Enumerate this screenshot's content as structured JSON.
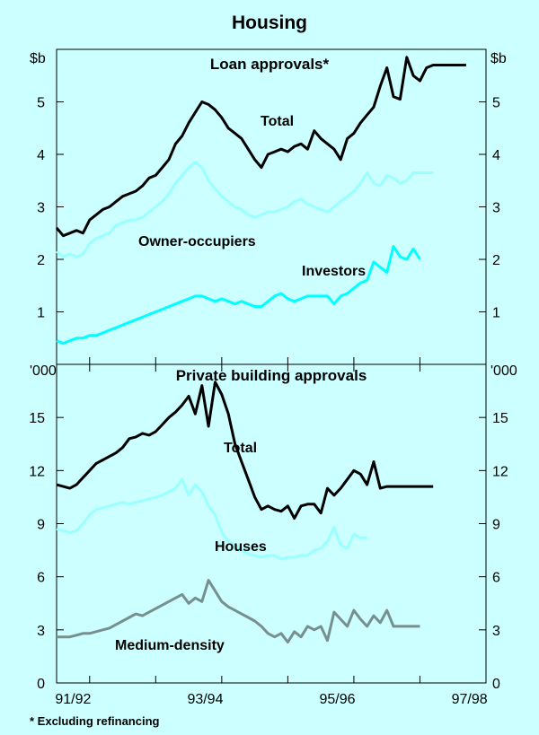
{
  "title": "Housing",
  "footnote": "*   Excluding refinancing",
  "chart_data": [
    {
      "type": "line",
      "title": "Loan approvals*",
      "unit_left": "$b",
      "unit_right": "$b",
      "ylim": [
        0,
        6
      ],
      "yticks": [
        1,
        2,
        3,
        4,
        5
      ],
      "xlim": [
        1991.5,
        1998.0
      ],
      "series": [
        {
          "name": "Total",
          "color": "#000000",
          "x": [
            1991.5,
            1991.6,
            1991.7,
            1991.8,
            1991.9,
            1992.0,
            1992.1,
            1992.2,
            1992.3,
            1992.4,
            1992.5,
            1992.6,
            1992.7,
            1992.8,
            1992.9,
            1993.0,
            1993.1,
            1993.2,
            1993.3,
            1993.4,
            1993.5,
            1993.6,
            1993.7,
            1993.8,
            1993.9,
            1994.0,
            1994.1,
            1994.2,
            1994.3,
            1994.4,
            1994.5,
            1994.6,
            1994.7,
            1994.8,
            1994.9,
            1995.0,
            1995.1,
            1995.2,
            1995.3,
            1995.4,
            1995.5,
            1995.6,
            1995.7,
            1995.8,
            1995.9,
            1996.0,
            1996.1,
            1996.2,
            1996.3,
            1996.4,
            1996.5,
            1996.6,
            1996.7,
            1996.8,
            1996.9,
            1997.0,
            1997.1,
            1997.2,
            1997.3,
            1997.4,
            1997.5,
            1997.6,
            1997.7
          ],
          "values": [
            2.6,
            2.45,
            2.5,
            2.55,
            2.5,
            2.75,
            2.85,
            2.95,
            3.0,
            3.1,
            3.2,
            3.25,
            3.3,
            3.4,
            3.55,
            3.6,
            3.75,
            3.9,
            4.2,
            4.35,
            4.6,
            4.8,
            5.0,
            4.95,
            4.85,
            4.7,
            4.5,
            4.4,
            4.3,
            4.1,
            3.9,
            3.75,
            4.0,
            4.05,
            4.1,
            4.05,
            4.15,
            4.2,
            4.1,
            4.45,
            4.3,
            4.2,
            4.1,
            3.9,
            4.3,
            4.4,
            4.6,
            4.75,
            4.9,
            5.3,
            5.65,
            5.1,
            5.05,
            5.85,
            5.5,
            5.4,
            5.65,
            5.7,
            5.7,
            5.7,
            5.7,
            5.7,
            5.7
          ]
        },
        {
          "name": "Owner-occupiers",
          "color": "#99ffff",
          "x": [
            1991.5,
            1991.6,
            1991.7,
            1991.8,
            1991.9,
            1992.0,
            1992.1,
            1992.2,
            1992.3,
            1992.4,
            1992.5,
            1992.6,
            1992.7,
            1992.8,
            1992.9,
            1993.0,
            1993.1,
            1993.2,
            1993.3,
            1993.4,
            1993.5,
            1993.6,
            1993.7,
            1993.8,
            1993.9,
            1994.0,
            1994.1,
            1994.2,
            1994.3,
            1994.4,
            1994.5,
            1994.6,
            1994.7,
            1994.8,
            1994.9,
            1995.0,
            1995.1,
            1995.2,
            1995.3,
            1995.4,
            1995.5,
            1995.6,
            1995.7,
            1995.8,
            1995.9,
            1996.0,
            1996.1,
            1996.2,
            1996.3,
            1996.4,
            1996.5,
            1996.6,
            1996.7,
            1996.8,
            1996.9,
            1997.0,
            1997.1,
            1997.2
          ],
          "values": [
            2.15,
            2.05,
            2.1,
            2.05,
            2.1,
            2.3,
            2.4,
            2.45,
            2.5,
            2.65,
            2.7,
            2.75,
            2.75,
            2.8,
            2.9,
            3.0,
            3.1,
            3.25,
            3.45,
            3.6,
            3.75,
            3.85,
            3.75,
            3.5,
            3.35,
            3.2,
            3.1,
            3.0,
            2.95,
            2.85,
            2.8,
            2.85,
            2.9,
            2.9,
            2.95,
            3.0,
            3.1,
            3.15,
            3.05,
            3.0,
            2.95,
            2.9,
            3.0,
            3.1,
            3.2,
            3.3,
            3.45,
            3.65,
            3.45,
            3.4,
            3.6,
            3.55,
            3.45,
            3.5,
            3.65,
            3.65,
            3.65,
            3.65
          ]
        },
        {
          "name": "Investors",
          "color": "#00ffff",
          "x": [
            1991.5,
            1991.6,
            1991.7,
            1991.8,
            1991.9,
            1992.0,
            1992.1,
            1992.2,
            1992.3,
            1992.4,
            1992.5,
            1992.6,
            1992.7,
            1992.8,
            1992.9,
            1993.0,
            1993.1,
            1993.2,
            1993.3,
            1993.4,
            1993.5,
            1993.6,
            1993.7,
            1993.8,
            1993.9,
            1994.0,
            1994.1,
            1994.2,
            1994.3,
            1994.4,
            1994.5,
            1994.6,
            1994.7,
            1994.8,
            1994.9,
            1995.0,
            1995.1,
            1995.2,
            1995.3,
            1995.4,
            1995.5,
            1995.6,
            1995.7,
            1995.8,
            1995.9,
            1996.0,
            1996.1,
            1996.2,
            1996.3,
            1996.4,
            1996.5,
            1996.6,
            1996.7,
            1996.8,
            1996.9,
            1997.0
          ],
          "values": [
            0.45,
            0.4,
            0.45,
            0.5,
            0.5,
            0.55,
            0.55,
            0.6,
            0.65,
            0.7,
            0.75,
            0.8,
            0.85,
            0.9,
            0.95,
            1.0,
            1.05,
            1.1,
            1.15,
            1.2,
            1.25,
            1.3,
            1.3,
            1.25,
            1.2,
            1.25,
            1.2,
            1.15,
            1.2,
            1.15,
            1.1,
            1.1,
            1.2,
            1.3,
            1.35,
            1.25,
            1.2,
            1.25,
            1.3,
            1.3,
            1.3,
            1.3,
            1.15,
            1.3,
            1.35,
            1.45,
            1.55,
            1.6,
            1.95,
            1.85,
            1.75,
            2.25,
            2.05,
            2.0,
            2.2,
            2.0
          ]
        }
      ]
    },
    {
      "type": "line",
      "title": "Private building approvals",
      "unit_left": "'000",
      "unit_right": "'000",
      "ylim": [
        0,
        18
      ],
      "yticks": [
        0,
        3,
        6,
        9,
        12,
        15
      ],
      "xlim": [
        1991.5,
        1998.0
      ],
      "xticks": [
        "91/92",
        "93/94",
        "95/96",
        "97/98"
      ],
      "series": [
        {
          "name": "Total",
          "color": "#000000",
          "x": [
            1991.5,
            1991.6,
            1991.7,
            1991.8,
            1991.9,
            1992.0,
            1992.1,
            1992.2,
            1992.3,
            1992.4,
            1992.5,
            1992.6,
            1992.7,
            1992.8,
            1992.9,
            1993.0,
            1993.1,
            1993.2,
            1993.3,
            1993.4,
            1993.5,
            1993.6,
            1993.7,
            1993.8,
            1993.9,
            1994.0,
            1994.1,
            1994.2,
            1994.3,
            1994.4,
            1994.5,
            1994.6,
            1994.7,
            1994.8,
            1994.9,
            1995.0,
            1995.1,
            1995.2,
            1995.3,
            1995.4,
            1995.5,
            1995.6,
            1995.7,
            1995.8,
            1995.9,
            1996.0,
            1996.1,
            1996.2,
            1996.3,
            1996.4,
            1996.5,
            1996.6,
            1996.7,
            1996.8,
            1996.9,
            1997.0,
            1997.1,
            1997.2
          ],
          "values": [
            11.2,
            11.1,
            11.0,
            11.2,
            11.6,
            12.0,
            12.4,
            12.6,
            12.8,
            13.0,
            13.3,
            13.8,
            13.9,
            14.1,
            14.0,
            14.2,
            14.6,
            15.0,
            15.3,
            15.7,
            16.2,
            15.2,
            16.8,
            14.5,
            17.0,
            16.3,
            15.2,
            13.5,
            12.5,
            11.5,
            10.5,
            9.8,
            10.0,
            9.8,
            9.7,
            10.0,
            9.3,
            10.0,
            10.1,
            10.1,
            9.6,
            11.0,
            10.6,
            11.0,
            11.5,
            12.0,
            11.8,
            11.2,
            12.5,
            11.0,
            11.1,
            11.1,
            11.1,
            11.1,
            11.1,
            11.1,
            11.1,
            11.1
          ]
        },
        {
          "name": "Houses",
          "color": "#99ffff",
          "x": [
            1991.5,
            1991.6,
            1991.7,
            1991.8,
            1991.9,
            1992.0,
            1992.1,
            1992.2,
            1992.3,
            1992.4,
            1992.5,
            1992.6,
            1992.7,
            1992.8,
            1992.9,
            1993.0,
            1993.1,
            1993.2,
            1993.3,
            1993.4,
            1993.5,
            1993.6,
            1993.7,
            1993.8,
            1993.9,
            1994.0,
            1994.1,
            1994.2,
            1994.3,
            1994.4,
            1994.5,
            1994.6,
            1994.7,
            1994.8,
            1994.9,
            1995.0,
            1995.1,
            1995.2,
            1995.3,
            1995.4,
            1995.5,
            1995.6,
            1995.7,
            1995.8,
            1995.9,
            1996.0,
            1996.1,
            1996.2
          ],
          "values": [
            8.7,
            8.6,
            8.5,
            8.6,
            9.0,
            9.5,
            9.8,
            9.9,
            10.0,
            10.1,
            10.2,
            10.1,
            10.2,
            10.3,
            10.4,
            10.5,
            10.6,
            10.8,
            11.0,
            11.5,
            10.6,
            11.2,
            10.8,
            10.0,
            9.5,
            8.5,
            8.0,
            7.8,
            7.5,
            7.3,
            7.2,
            7.1,
            7.2,
            7.2,
            7.0,
            7.1,
            7.1,
            7.2,
            7.2,
            7.5,
            7.6,
            8.0,
            8.8,
            7.8,
            7.6,
            8.4,
            8.2,
            8.2
          ]
        },
        {
          "name": "Medium-density",
          "color": "#778f8f",
          "x": [
            1991.5,
            1991.6,
            1991.7,
            1991.8,
            1991.9,
            1992.0,
            1992.1,
            1992.2,
            1992.3,
            1992.4,
            1992.5,
            1992.6,
            1992.7,
            1992.8,
            1992.9,
            1993.0,
            1993.1,
            1993.2,
            1993.3,
            1993.4,
            1993.5,
            1993.6,
            1993.7,
            1993.8,
            1993.9,
            1994.0,
            1994.1,
            1994.2,
            1994.3,
            1994.4,
            1994.5,
            1994.6,
            1994.7,
            1994.8,
            1994.9,
            1995.0,
            1995.1,
            1995.2,
            1995.3,
            1995.4,
            1995.5,
            1995.6,
            1995.7,
            1995.8,
            1995.9,
            1996.0,
            1996.1,
            1996.2,
            1996.3,
            1996.4,
            1996.5,
            1996.6,
            1996.7,
            1996.8,
            1996.9,
            1997.0
          ],
          "values": [
            2.6,
            2.6,
            2.6,
            2.7,
            2.8,
            2.8,
            2.9,
            3.0,
            3.1,
            3.3,
            3.5,
            3.7,
            3.9,
            3.8,
            4.0,
            4.2,
            4.4,
            4.6,
            4.8,
            5.0,
            4.5,
            4.8,
            4.6,
            5.8,
            5.2,
            4.6,
            4.3,
            4.1,
            3.9,
            3.7,
            3.5,
            3.2,
            2.8,
            2.6,
            2.8,
            2.3,
            2.9,
            2.6,
            3.2,
            3.0,
            3.2,
            2.4,
            4.0,
            3.6,
            3.2,
            4.1,
            3.6,
            3.2,
            3.8,
            3.4,
            4.1,
            3.2,
            3.2,
            3.2,
            3.2,
            3.2
          ]
        }
      ]
    }
  ]
}
